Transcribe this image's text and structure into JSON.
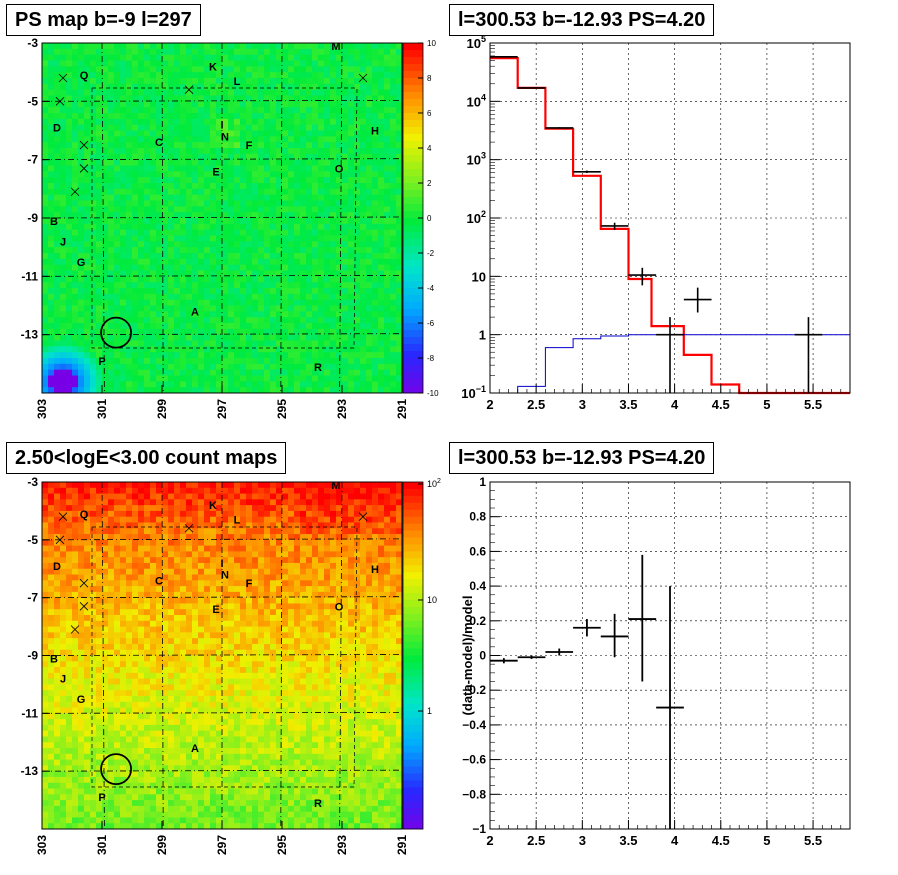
{
  "chart_data": [
    {
      "type": "heatmap",
      "title": "PS map b=-9 l=297",
      "x_ticks": [
        "303",
        "301",
        "299",
        "297",
        "295",
        "293",
        "291"
      ],
      "y_ticks": [
        "-3",
        "-5",
        "-7",
        "-9",
        "-11",
        "-13"
      ],
      "xlim": [
        303,
        291
      ],
      "ylim": [
        -15,
        -3
      ],
      "colorbar": {
        "min": -10,
        "max": 10,
        "ticks": [
          "10",
          "8",
          "6",
          "4",
          "2",
          "0",
          "-2",
          "-4",
          "-6",
          "-8",
          "-10"
        ]
      },
      "labels": [
        {
          "t": "M",
          "l": 293.2,
          "b": -3.1
        },
        {
          "t": "K",
          "l": 297.3,
          "b": -3.8
        },
        {
          "t": "L",
          "l": 296.5,
          "b": -4.3
        },
        {
          "t": "Q",
          "l": 301.6,
          "b": -4.1
        },
        {
          "t": "D",
          "l": 302.5,
          "b": -5.9
        },
        {
          "t": "H",
          "l": 291.9,
          "b": -6.0
        },
        {
          "t": "I",
          "l": 297.0,
          "b": -5.8
        },
        {
          "t": "N",
          "l": 296.9,
          "b": -6.2
        },
        {
          "t": "C",
          "l": 299.1,
          "b": -6.4
        },
        {
          "t": "F",
          "l": 296.1,
          "b": -6.5
        },
        {
          "t": "E",
          "l": 297.2,
          "b": -7.4
        },
        {
          "t": "O",
          "l": 293.1,
          "b": -7.3
        },
        {
          "t": "B",
          "l": 302.6,
          "b": -9.1
        },
        {
          "t": "J",
          "l": 302.3,
          "b": -9.8
        },
        {
          "t": "G",
          "l": 301.7,
          "b": -10.5
        },
        {
          "t": "A",
          "l": 297.9,
          "b": -12.2
        },
        {
          "t": "P",
          "l": 301.0,
          "b": -13.9
        },
        {
          "t": "R",
          "l": 293.8,
          "b": -14.1
        }
      ],
      "crosses": [
        {
          "l": 302.3,
          "b": -4.2
        },
        {
          "l": 302.4,
          "b": -5.0
        },
        {
          "l": 298.1,
          "b": -4.6
        },
        {
          "l": 292.3,
          "b": -4.2
        },
        {
          "l": 301.6,
          "b": -6.5
        },
        {
          "l": 301.6,
          "b": -7.3
        },
        {
          "l": 301.9,
          "b": -8.1
        }
      ],
      "circle": {
        "l": 300.53,
        "b": -12.93
      }
    },
    {
      "type": "line",
      "title": "l=300.53 b=-12.93 PS=4.20",
      "y_scale": "log",
      "xlim": [
        2.0,
        5.9
      ],
      "ylim": [
        0.1,
        100000
      ],
      "x_ticks": [
        "2",
        "2.5",
        "3",
        "3.5",
        "4",
        "4.5",
        "5",
        "5.5"
      ],
      "y_ticks": [
        {
          "v": 100000,
          "base": "10",
          "exp": "5"
        },
        {
          "v": 10000,
          "base": "10",
          "exp": "4"
        },
        {
          "v": 1000,
          "base": "10",
          "exp": "3"
        },
        {
          "v": 100,
          "base": "10",
          "exp": "2"
        },
        {
          "v": 10,
          "base": "10",
          "exp": ""
        },
        {
          "v": 1,
          "base": "1",
          "exp": ""
        },
        {
          "v": 0.1,
          "base": "10",
          "exp": "−1"
        }
      ],
      "series": [
        {
          "edges": [
            2.0,
            2.3,
            2.6,
            2.9,
            3.2,
            3.5,
            3.75,
            4.1,
            4.4,
            4.7,
            5.9
          ],
          "values": [
            55000,
            17000,
            3400,
            530,
            65,
            9,
            1.4,
            0.45,
            0.14,
            0.1
          ],
          "color": "#ff0000"
        },
        {
          "edges": [
            2.0,
            2.3,
            2.6,
            2.9,
            3.2,
            3.5,
            3.75,
            4.1,
            4.4,
            4.7,
            5.9
          ],
          "values": [
            0.1,
            0.13,
            0.6,
            0.85,
            0.95,
            1.0,
            1.0,
            1.0,
            1.0,
            1.0
          ],
          "color": "#0000cc"
        }
      ],
      "points": [
        {
          "x": 2.15,
          "y": 58000,
          "xerr": 0.15,
          "ylo": 57000,
          "yhi": 59000
        },
        {
          "x": 2.45,
          "y": 17000,
          "xerr": 0.15,
          "ylo": 16800,
          "yhi": 17200
        },
        {
          "x": 2.75,
          "y": 3500,
          "xerr": 0.15,
          "ylo": 3400,
          "yhi": 3600
        },
        {
          "x": 3.05,
          "y": 620,
          "xerr": 0.15,
          "ylo": 590,
          "yhi": 650
        },
        {
          "x": 3.35,
          "y": 73,
          "xerr": 0.15,
          "ylo": 63,
          "yhi": 83
        },
        {
          "x": 3.65,
          "y": 10.5,
          "xerr": 0.15,
          "ylo": 7,
          "yhi": 14
        },
        {
          "x": 3.95,
          "y": 1.0,
          "xerr": 0.15,
          "ylo": 0.1,
          "yhi": 2.0
        },
        {
          "x": 4.25,
          "y": 4.0,
          "xerr": 0.15,
          "ylo": 2.4,
          "yhi": 6.4
        },
        {
          "x": 5.45,
          "y": 1.0,
          "xerr": 0.15,
          "ylo": 0.1,
          "yhi": 2.0
        }
      ]
    },
    {
      "type": "heatmap",
      "title": "2.50<logE<3.00 count maps",
      "x_ticks": [
        "303",
        "301",
        "299",
        "297",
        "295",
        "293",
        "291"
      ],
      "y_ticks": [
        "-3",
        "-5",
        "-7",
        "-9",
        "-11",
        "-13"
      ],
      "colorbar": {
        "scale": "log",
        "ticks": [
          {
            "base": "10",
            "exp": "2"
          },
          {
            "base": "10",
            "exp": ""
          },
          {
            "base": "1",
            "exp": ""
          }
        ]
      }
    },
    {
      "type": "scatter",
      "title": "l=300.53 b=-12.93 PS=4.20",
      "ylabel": "(data-model)/model",
      "xlim": [
        2.0,
        5.9
      ],
      "ylim": [
        -1,
        1
      ],
      "x_ticks": [
        "2",
        "2.5",
        "3",
        "3.5",
        "4",
        "4.5",
        "5",
        "5.5"
      ],
      "y_ticks": [
        "1",
        "0.8",
        "0.6",
        "0.4",
        "0.2",
        "0",
        "−0.2",
        "−0.4",
        "−0.6",
        "−0.8",
        "−1"
      ],
      "points": [
        {
          "x": 2.15,
          "y": -0.03,
          "xerr": 0.15,
          "ylo": -0.045,
          "yhi": -0.015
        },
        {
          "x": 2.45,
          "y": -0.01,
          "xerr": 0.15,
          "ylo": -0.02,
          "yhi": 0.0
        },
        {
          "x": 2.75,
          "y": 0.02,
          "xerr": 0.15,
          "ylo": 0.0,
          "yhi": 0.04
        },
        {
          "x": 3.05,
          "y": 0.16,
          "xerr": 0.15,
          "ylo": 0.11,
          "yhi": 0.21
        },
        {
          "x": 3.35,
          "y": 0.11,
          "xerr": 0.15,
          "ylo": -0.01,
          "yhi": 0.24
        },
        {
          "x": 3.65,
          "y": 0.21,
          "xerr": 0.15,
          "ylo": -0.15,
          "yhi": 0.58
        },
        {
          "x": 3.95,
          "y": -0.3,
          "xerr": 0.15,
          "ylo": -1.0,
          "yhi": 0.4
        }
      ]
    }
  ]
}
